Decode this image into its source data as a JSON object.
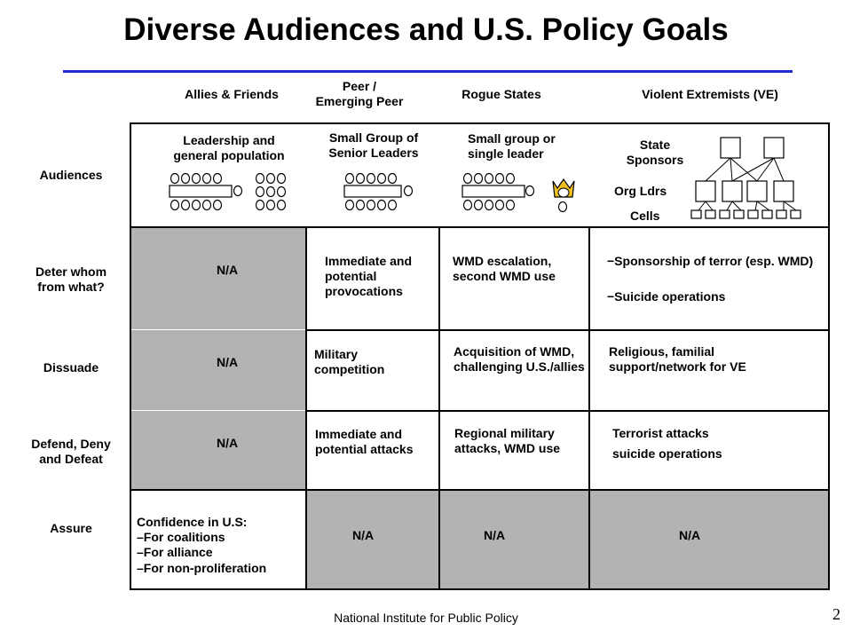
{
  "title": "Diverse Audiences and U.S. Policy Goals",
  "columns": [
    "Allies & Friends",
    "Peer / Emerging Peer",
    "Rogue States",
    "Violent Extremists (VE)"
  ],
  "rows": {
    "audiences": "Audiences",
    "deter": "Deter whom from what?",
    "dissuade": "Dissuade",
    "defend": "Defend, Deny and Defeat",
    "assure": "Assure"
  },
  "audiences": {
    "allies": "Leadership and general population",
    "peer": "Small Group of Senior Leaders",
    "rogue": "Small group or single leader",
    "ve_state": "State Sponsors",
    "ve_org": "Org Ldrs",
    "ve_cells": "Cells"
  },
  "deter": {
    "allies": "N/A",
    "peer": "Immediate and potential provocations",
    "rogue": "WMD escalation, second WMD use",
    "ve_1": "−Sponsorship of terror (esp. WMD)",
    "ve_2": "−Suicide operations"
  },
  "dissuade": {
    "allies": "N/A",
    "peer": "Military competition",
    "rogue": "Acquisition of WMD, challenging U.S./allies",
    "ve": "Religious, familial support/network for VE"
  },
  "defend": {
    "allies": "N/A",
    "peer": "Immediate and potential attacks",
    "rogue": "Regional military attacks, WMD use",
    "ve_1": "Terrorist attacks",
    "ve_2": "suicide operations"
  },
  "assure": {
    "allies_1": "Confidence in U.S:",
    "allies_2": "–For coalitions",
    "allies_3": "–For alliance",
    "allies_4": "–For non-proliferation",
    "peer": "N/A",
    "rogue": "N/A",
    "ve": "N/A"
  },
  "footer": "National Institute for Public Policy",
  "page_number": "2",
  "colors": {
    "rule": "#1f2bd1",
    "shade": "#b3b3b3"
  }
}
